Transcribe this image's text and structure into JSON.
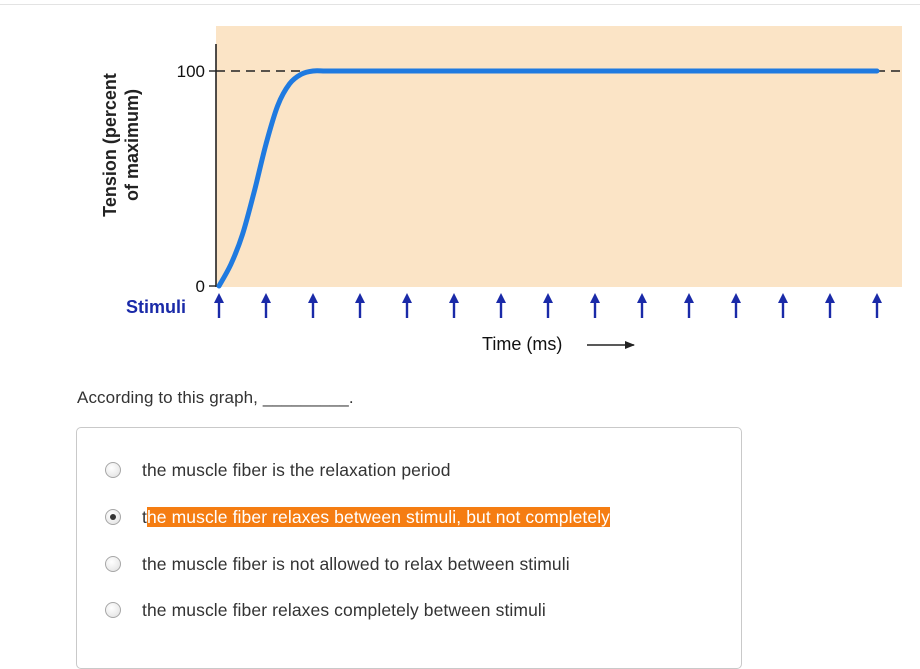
{
  "chart_data": {
    "type": "line",
    "title": "",
    "ylabel_line1": "Tension (percent",
    "ylabel_line2": "of maximum)",
    "xlabel": "Time (ms)",
    "y_ticks": [
      "0",
      "100"
    ],
    "ylim": [
      0,
      120
    ],
    "x_range": [
      0,
      14
    ],
    "stimuli_label": "Stimuli",
    "stimuli_count": 15,
    "reference_line": {
      "y": 100,
      "style": "dashed"
    },
    "series": [
      {
        "x": [
          0,
          0.25,
          0.5,
          0.75,
          1.0,
          1.25,
          1.5,
          1.75,
          2.0,
          2.25,
          2.5,
          3.0,
          3.5,
          4,
          6,
          8,
          10,
          12,
          14
        ],
        "values": [
          0,
          10,
          24,
          44,
          66,
          84,
          94,
          98.5,
          100,
          100,
          100,
          100,
          100,
          100,
          100,
          100,
          100,
          100,
          100
        ]
      }
    ],
    "colors": {
      "plot_background": "#fbe4c6",
      "line": "#1f7ae0",
      "arrows": "#1a2aa8",
      "stimuli_text": "#1a2aa8"
    }
  },
  "question": {
    "text": "According to this graph, _________."
  },
  "options": [
    {
      "text": "the muscle fiber is the relaxation period",
      "selected": false
    },
    {
      "text_pre": "t",
      "text_highlight": "he muscle fiber relaxes between stimuli, but not completely",
      "selected": true
    },
    {
      "text": "the muscle fiber is not allowed to relax between stimuli",
      "selected": false
    },
    {
      "text": "the muscle fiber relaxes completely between stimuli",
      "selected": false
    }
  ],
  "highlight_color": "#f57d12"
}
